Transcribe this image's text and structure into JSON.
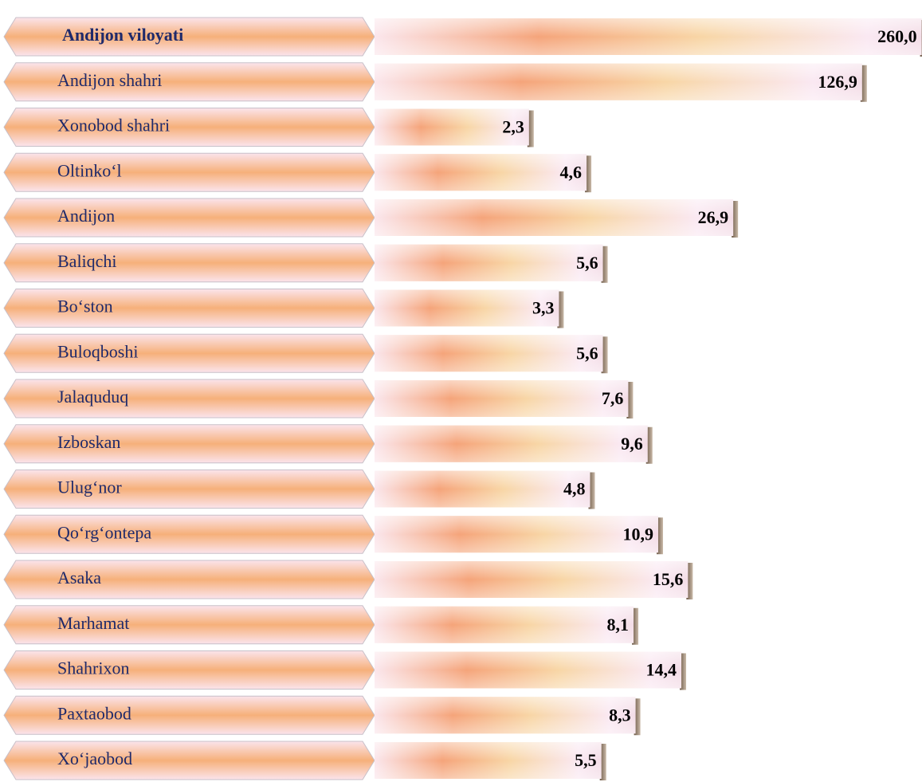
{
  "chart_data": {
    "type": "bar",
    "orientation": "horizontal",
    "log_scale": true,
    "categories": [
      "Andijon viloyati",
      "Andijon  shahri",
      "Xonobod shahri",
      "Oltinko‘l",
      "Andijon",
      "Baliqchi",
      "Bo‘ston",
      "Buloqboshi",
      "Jalaquduq",
      "Izboskan",
      "Ulug‘nor",
      "Qo‘rg‘ontepa",
      "Asaka",
      "Marhamat",
      "Shahrixon",
      "Paxtaobod",
      "Xo‘jaobod"
    ],
    "values": [
      260.0,
      126.9,
      2.3,
      4.6,
      26.9,
      5.6,
      3.3,
      5.6,
      7.6,
      9.6,
      4.8,
      10.9,
      15.6,
      8.1,
      14.4,
      8.3,
      5.5
    ],
    "value_labels": [
      "260,0",
      "126,9",
      "2,3",
      "4,6",
      "26,9",
      "5,6",
      "3,3",
      "5,6",
      "7,6",
      "9,6",
      "4,8",
      "10,9",
      "15,6",
      "8,1",
      "14,4",
      "8,3",
      "5,5"
    ],
    "color": "#f5a878"
  }
}
